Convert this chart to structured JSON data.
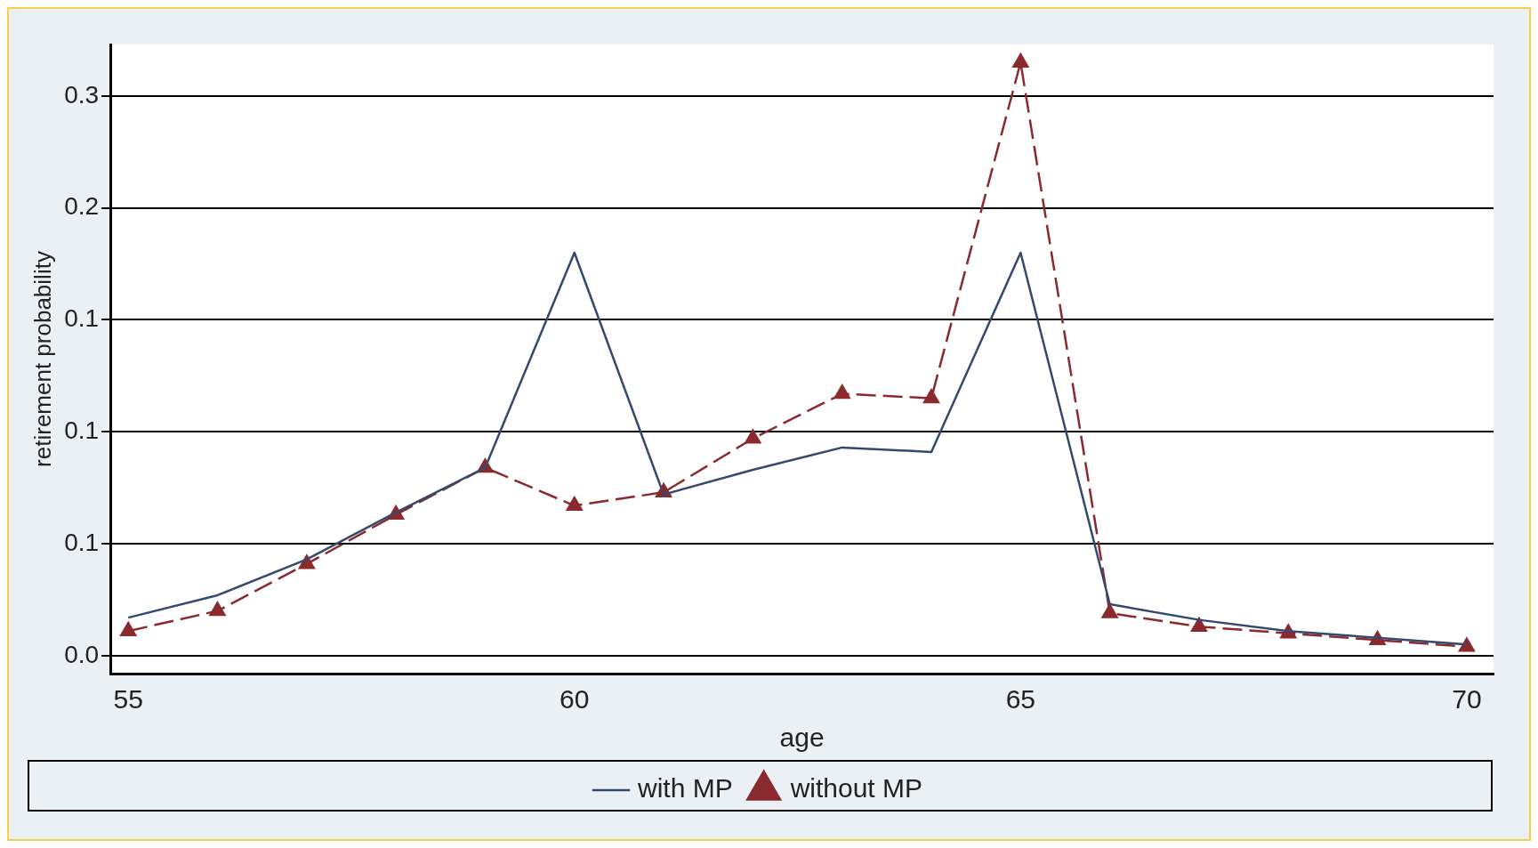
{
  "chart_data": {
    "type": "line",
    "xlabel": "age",
    "ylabel": "retirement probability",
    "x": [
      55,
      56,
      57,
      58,
      59,
      60,
      61,
      62,
      63,
      64,
      65,
      66,
      67,
      68,
      69,
      70
    ],
    "series": [
      {
        "name": "with MP",
        "color": "#34496e",
        "line_style": "solid",
        "marker": "none",
        "values": [
          0.017,
          0.027,
          0.043,
          0.064,
          0.084,
          0.18,
          0.072,
          0.083,
          0.093,
          0.091,
          0.18,
          0.023,
          0.016,
          0.011,
          0.008,
          0.005
        ]
      },
      {
        "name": "without MP",
        "color": "#8b2a2e",
        "line_style": "dashed",
        "marker": "triangle",
        "values": [
          0.011,
          0.02,
          0.041,
          0.063,
          0.084,
          0.067,
          0.073,
          0.097,
          0.117,
          0.115,
          0.265,
          0.019,
          0.013,
          0.01,
          0.007,
          0.004
        ]
      }
    ],
    "xlim": [
      54.8,
      70.3
    ],
    "xticks": [
      55,
      60,
      65,
      70
    ],
    "ylim": [
      -0.008,
      0.273
    ],
    "yticks": [
      {
        "value": 0,
        "label": "0.0"
      },
      {
        "value": 0.05,
        "label": "0.1"
      },
      {
        "value": 0.1,
        "label": "0.1"
      },
      {
        "value": 0.15,
        "label": "0.1"
      },
      {
        "value": 0.2,
        "label": "0.2"
      },
      {
        "value": 0.25,
        "label": "0.3"
      }
    ],
    "grid": "y",
    "legend": "bottom"
  }
}
